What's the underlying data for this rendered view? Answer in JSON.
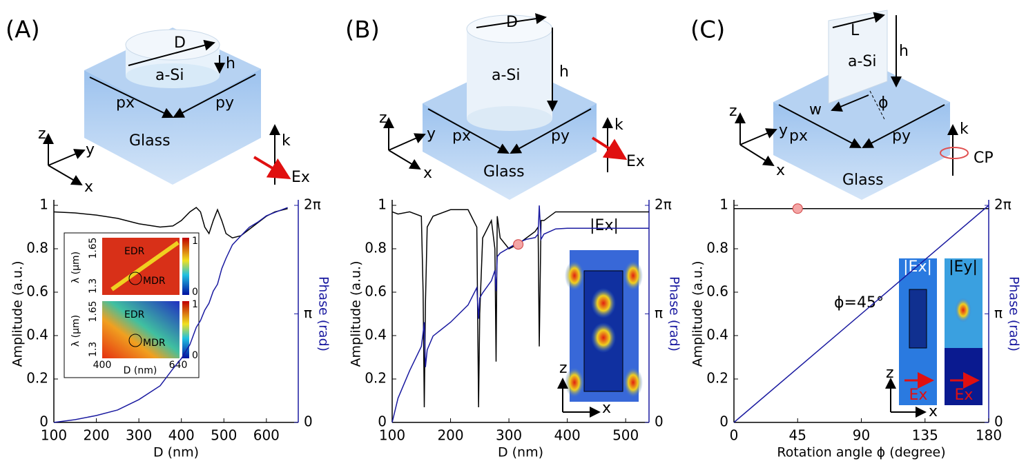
{
  "chart_data": [
    {
      "type": "line",
      "xlabel": "D (nm)",
      "ylabel": "Amplitude (a.u.)",
      "y2label": "Phase (rad)",
      "xlim": [
        100,
        675
      ],
      "xticks": [
        100,
        200,
        300,
        400,
        500,
        600
      ],
      "ylim": [
        0,
        1
      ],
      "yticks": [
        0,
        0.2,
        0.4,
        0.6,
        0.8,
        1
      ],
      "y2lim": [
        0,
        6.2832
      ],
      "y2ticks": [
        0,
        {
          "value": 3.1416,
          "label": "π"
        },
        {
          "value": 6.2832,
          "label": "2π"
        }
      ],
      "x": [
        100,
        150,
        200,
        250,
        300,
        350,
        380,
        400,
        420,
        435,
        445,
        455,
        465,
        475,
        485,
        495,
        505,
        520,
        540,
        560,
        580,
        600,
        620,
        650
      ],
      "series": [
        {
          "color": "#000000",
          "values": [
            0.97,
            0.965,
            0.955,
            0.94,
            0.915,
            0.9,
            0.905,
            0.93,
            0.97,
            0.99,
            0.97,
            0.9,
            0.87,
            0.93,
            0.98,
            0.93,
            0.87,
            0.85,
            0.86,
            0.89,
            0.92,
            0.95,
            0.97,
            0.985
          ]
        },
        {
          "color": "#1a1aa0",
          "axis": "y2",
          "values": [
            0,
            0.08,
            0.2,
            0.36,
            0.66,
            1.06,
            1.55,
            1.85,
            2.25,
            2.75,
            2.95,
            3.25,
            3.45,
            3.8,
            4.0,
            4.45,
            4.75,
            5.14,
            5.4,
            5.65,
            5.8,
            5.98,
            6.08,
            6.22
          ]
        }
      ],
      "annotations": [
        "(A)",
        "D",
        "h",
        "a-Si",
        "px",
        "py",
        "Glass",
        "z",
        "y",
        "x",
        "k",
        "Ex",
        "EDR",
        "MDR",
        "λ (μm)",
        "1.65",
        "1.3",
        "1",
        "0",
        "EDR",
        "MDR",
        "λ (μm)",
        "1.65",
        "1.3",
        "1",
        "0",
        "400",
        "640",
        "D (nm)"
      ]
    },
    {
      "type": "line",
      "xlabel": "D (nm)",
      "ylabel": "Amplitude (a.u.)",
      "y2label": "Phase (rad)",
      "xlim": [
        100,
        540
      ],
      "xticks": [
        100,
        200,
        300,
        400,
        500
      ],
      "ylim": [
        0,
        1
      ],
      "yticks": [
        0,
        0.2,
        0.4,
        0.6,
        0.8,
        1
      ],
      "y2lim": [
        0,
        6.2832
      ],
      "y2ticks": [
        0,
        {
          "value": 3.1416,
          "label": "π"
        },
        {
          "value": 6.2832,
          "label": "2π"
        }
      ],
      "x": [
        100,
        110,
        130,
        150,
        153,
        155,
        157,
        160,
        170,
        200,
        230,
        245,
        248,
        250,
        255,
        270,
        276,
        278,
        280,
        285,
        300,
        315,
        330,
        345,
        350,
        352,
        355,
        360,
        380,
        400,
        450,
        500,
        540
      ],
      "series": [
        {
          "color": "#000000",
          "values": [
            0.97,
            0.96,
            0.97,
            0.95,
            0.6,
            0.07,
            0.55,
            0.9,
            0.95,
            0.98,
            0.98,
            0.9,
            0.07,
            0.5,
            0.85,
            0.93,
            0.8,
            0.28,
            0.95,
            0.85,
            0.8,
            0.82,
            0.85,
            0.88,
            0.9,
            0.35,
            0.93,
            0.93,
            0.97,
            0.97,
            0.97,
            0.97,
            0.97
          ]
        },
        {
          "color": "#1a1aa0",
          "axis": "y2",
          "values": [
            0,
            0.7,
            1.5,
            2.2,
            2.6,
            2.9,
            1.6,
            2.1,
            2.5,
            2.9,
            3.4,
            3.9,
            3.0,
            3.6,
            3.75,
            4.1,
            4.4,
            3.8,
            4.8,
            4.9,
            5.05,
            5.2,
            5.3,
            5.35,
            5.45,
            6.28,
            5.3,
            5.45,
            5.6,
            5.62,
            5.62,
            5.62,
            5.62
          ]
        }
      ],
      "markers": [
        {
          "x": 316,
          "y": 0.82
        }
      ],
      "marker_color": "#f4a6a6",
      "annotations": [
        "(B)",
        "D",
        "h",
        "a-Si",
        "px",
        "py",
        "Glass",
        "z",
        "y",
        "x",
        "k",
        "Ex",
        "|Ex|",
        "z",
        "x"
      ]
    },
    {
      "type": "line",
      "xlabel": "Rotation angle ϕ (degree)",
      "ylabel": "Amplitude (a.u.)",
      "y2label": "Phase (rad)",
      "xlim": [
        0,
        180
      ],
      "xticks": [
        0,
        45,
        90,
        135,
        180
      ],
      "ylim": [
        0,
        1
      ],
      "yticks": [
        0,
        0.2,
        0.4,
        0.6,
        0.8,
        1
      ],
      "y2lim": [
        0,
        6.2832
      ],
      "y2ticks": [
        0,
        {
          "value": 3.1416,
          "label": "π"
        },
        {
          "value": 6.2832,
          "label": "2π"
        }
      ],
      "x": [
        0,
        180
      ],
      "series": [
        {
          "color": "#000000",
          "values": [
            0.985,
            0.985
          ]
        },
        {
          "color": "#1a1aa0",
          "axis": "y2",
          "values": [
            0,
            6.2832
          ]
        }
      ],
      "markers": [
        {
          "x": 45,
          "y": 0.985
        }
      ],
      "marker_color": "#f4a6a6",
      "annotations": [
        "(C)",
        "L",
        "h",
        "a-Si",
        "w",
        "ϕ",
        "px",
        "py",
        "Glass",
        "z",
        "y",
        "x",
        "k",
        "CP",
        "ϕ=45°",
        "|Ex|",
        "|Ey|",
        "z",
        "x",
        "Ex",
        "Ex"
      ]
    }
  ]
}
